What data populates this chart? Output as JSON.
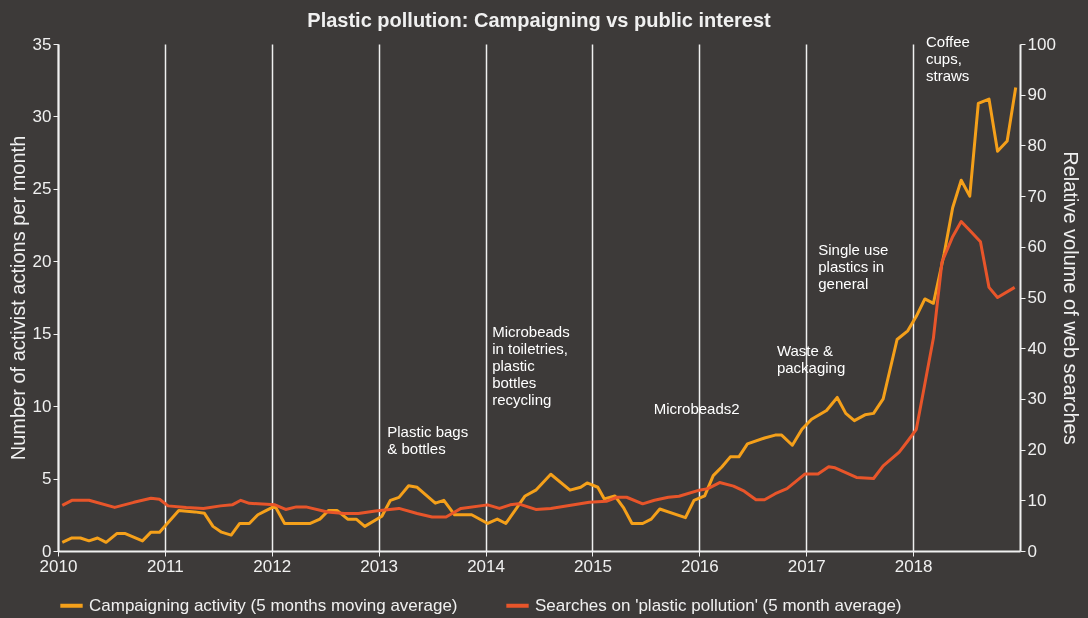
{
  "chart_data": {
    "type": "line",
    "title": "Plastic pollution: Campaigning vs public interest",
    "ylabel": "Number of activist actions per month",
    "y2label": "Relative volume of web searches",
    "xlim": [
      2010,
      2019
    ],
    "xticks": [
      2010,
      2011,
      2012,
      2013,
      2014,
      2015,
      2016,
      2017,
      2018
    ],
    "ylim": [
      0,
      35
    ],
    "yticks": [
      0,
      5,
      10,
      15,
      20,
      25,
      30,
      35
    ],
    "y2lim": [
      0,
      100
    ],
    "y2ticks": [
      0,
      10,
      20,
      30,
      40,
      50,
      60,
      70,
      80,
      90,
      100
    ],
    "grid": "x",
    "legend": "bottom",
    "marker": "none",
    "line_style": "solid",
    "series": [
      {
        "name": "Campaigning activity (5 months moving average)",
        "color": "#f5a01a",
        "axis": "y",
        "x": [
          2010.04,
          2010.13,
          2010.21,
          2010.29,
          2010.37,
          2010.45,
          2010.55,
          2010.63,
          2010.79,
          2010.87,
          2010.95,
          2011.13,
          2011.28,
          2011.37,
          2011.45,
          2011.53,
          2011.62,
          2011.7,
          2011.79,
          2011.87,
          2011.95,
          2012.03,
          2012.12,
          2012.36,
          2012.45,
          2012.53,
          2012.61,
          2012.71,
          2012.79,
          2012.87,
          2013.03,
          2013.11,
          2013.19,
          2013.28,
          2013.36,
          2013.53,
          2013.61,
          2013.71,
          2013.87,
          2014.02,
          2014.11,
          2014.19,
          2014.37,
          2014.47,
          2014.61,
          2014.79,
          2014.89,
          2014.95,
          2015.05,
          2015.11,
          2015.21,
          2015.29,
          2015.37,
          2015.47,
          2015.55,
          2015.63,
          2015.87,
          2015.95,
          2016.05,
          2016.13,
          2016.21,
          2016.29,
          2016.37,
          2016.45,
          2016.61,
          2016.71,
          2016.77,
          2016.87,
          2016.96,
          2017.05,
          2017.19,
          2017.29,
          2017.37,
          2017.45,
          2017.55,
          2017.63,
          2017.72,
          2017.85,
          2017.95,
          2018.03,
          2018.11,
          2018.19,
          2018.29,
          2018.37,
          2018.45,
          2018.53,
          2018.61,
          2018.71,
          2018.79,
          2018.88,
          2018.96
        ],
        "values": [
          0.6,
          0.9,
          0.9,
          0.7,
          0.9,
          0.6,
          1.2,
          1.2,
          0.7,
          1.3,
          1.3,
          2.8,
          2.7,
          2.6,
          1.7,
          1.3,
          1.1,
          1.9,
          1.9,
          2.5,
          2.8,
          3.1,
          1.9,
          1.9,
          2.2,
          2.8,
          2.8,
          2.2,
          2.2,
          1.7,
          2.4,
          3.5,
          3.7,
          4.5,
          4.4,
          3.3,
          3.5,
          2.5,
          2.5,
          1.9,
          2.2,
          1.9,
          3.8,
          4.2,
          5.3,
          4.2,
          4.4,
          4.7,
          4.4,
          3.6,
          3.8,
          3.0,
          1.9,
          1.9,
          2.2,
          2.9,
          2.3,
          3.5,
          3.8,
          5.2,
          5.8,
          6.5,
          6.5,
          7.4,
          7.8,
          8.0,
          8.0,
          7.3,
          8.4,
          9.1,
          9.7,
          10.6,
          9.5,
          9.0,
          9.4,
          9.5,
          10.5,
          14.6,
          15.2,
          16.2,
          17.4,
          17.1,
          20.5,
          23.7,
          25.6,
          24.5,
          30.9,
          31.2,
          27.6,
          28.3,
          32.0
        ]
      },
      {
        "name": "Searches on 'plastic pollution' (5 month average)",
        "color": "#e8552a",
        "axis": "y2",
        "x": [
          2010.04,
          2010.13,
          2010.29,
          2010.53,
          2010.71,
          2010.87,
          2010.95,
          2011.03,
          2011.2,
          2011.36,
          2011.52,
          2011.63,
          2011.71,
          2011.79,
          2012.03,
          2012.13,
          2012.23,
          2012.32,
          2012.52,
          2012.68,
          2012.81,
          2012.97,
          2013.19,
          2013.36,
          2013.5,
          2013.63,
          2013.77,
          2014.02,
          2014.13,
          2014.23,
          2014.31,
          2014.47,
          2014.61,
          2014.97,
          2015.13,
          2015.23,
          2015.32,
          2015.47,
          2015.58,
          2015.71,
          2015.81,
          2016.0,
          2016.08,
          2016.19,
          2016.32,
          2016.42,
          2016.53,
          2016.61,
          2016.71,
          2016.82,
          2016.99,
          2017.11,
          2017.21,
          2017.27,
          2017.47,
          2017.63,
          2017.72,
          2017.87,
          2017.95,
          2018.03,
          2018.11,
          2018.19,
          2018.27,
          2018.37,
          2018.45,
          2018.54,
          2018.63,
          2018.71,
          2018.79,
          2018.95
        ],
        "values": [
          9,
          10,
          10,
          8.6,
          9.6,
          10.4,
          10.2,
          8.9,
          8.6,
          8.4,
          8.9,
          9.1,
          10,
          9.4,
          9.1,
          8.2,
          8.7,
          8.7,
          7.7,
          7.4,
          7.4,
          7.9,
          8.4,
          7.4,
          6.7,
          6.7,
          8.4,
          9.1,
          8.4,
          9.1,
          9.3,
          8.2,
          8.4,
          9.6,
          9.8,
          10.6,
          10.6,
          9.3,
          10,
          10.6,
          10.8,
          12,
          12.3,
          13.5,
          12.8,
          11.8,
          10.1,
          10.1,
          11.3,
          12.3,
          15.2,
          15.2,
          16.6,
          16.4,
          14.5,
          14.3,
          16.8,
          19.5,
          21.7,
          24,
          33,
          42,
          57,
          62,
          65,
          63,
          61,
          52,
          50,
          52
        ]
      }
    ],
    "annotations": [
      "Plastic bags\n& bottles",
      "Microbeads\nin toiletries,\nplastic\nbottles\nrecycling",
      "Microbeads2",
      "Waste &\npackaging",
      "Single use\nplastics in\ngeneral",
      "Coffee\ncups,\nstraws"
    ]
  }
}
